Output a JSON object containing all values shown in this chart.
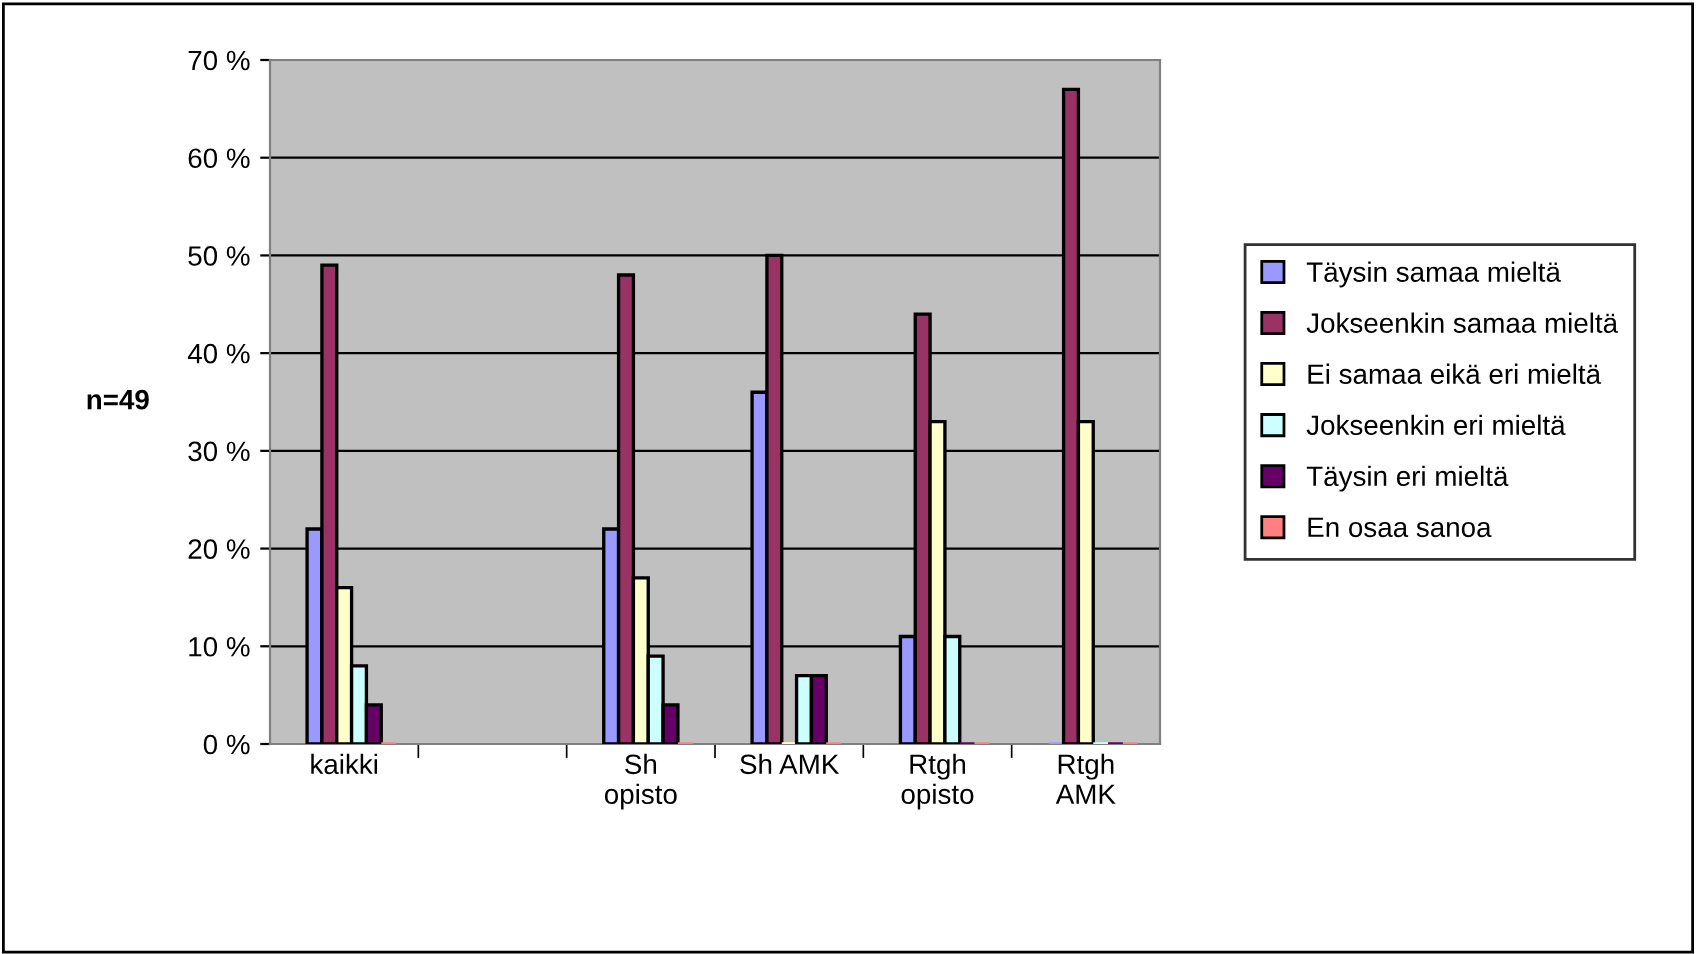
{
  "chart_data": {
    "type": "bar",
    "ylabel": "n=49",
    "categories": [
      "kaikki",
      null,
      "Sh\nopisto",
      "Sh AMK",
      "Rtgh\nopisto",
      "Rtgh\nAMK"
    ],
    "series": [
      {
        "name": "Täysin samaa mieltä",
        "color": "#9999ff",
        "values": [
          22,
          null,
          22,
          36,
          11,
          0
        ]
      },
      {
        "name": "Jokseenkin samaa mieltä",
        "color": "#993366",
        "values": [
          49,
          null,
          48,
          50,
          44,
          67
        ]
      },
      {
        "name": "Ei samaa eikä eri mieltä",
        "color": "#ffffcc",
        "values": [
          16,
          null,
          17,
          0,
          33,
          33
        ]
      },
      {
        "name": "Jokseenkin eri mieltä",
        "color": "#ccffff",
        "values": [
          8,
          null,
          9,
          7,
          11,
          0
        ]
      },
      {
        "name": "Täysin eri mieltä",
        "color": "#660066",
        "values": [
          4,
          null,
          4,
          7,
          0,
          0
        ]
      },
      {
        "name": "En osaa sanoa",
        "color": "#ff8080",
        "values": [
          0,
          null,
          0,
          0,
          0,
          0
        ]
      }
    ],
    "ylim": [
      0,
      70
    ],
    "yticks": [
      {
        "value": 0,
        "label": "0 %"
      },
      {
        "value": 10,
        "label": "10 %"
      },
      {
        "value": 20,
        "label": "20 %"
      },
      {
        "value": 30,
        "label": "30 %"
      },
      {
        "value": 40,
        "label": "40 %"
      },
      {
        "value": 50,
        "label": "50 %"
      },
      {
        "value": 60,
        "label": "60 %"
      },
      {
        "value": 70,
        "label": "70 %"
      }
    ],
    "grid": "y",
    "legend": "right"
  }
}
